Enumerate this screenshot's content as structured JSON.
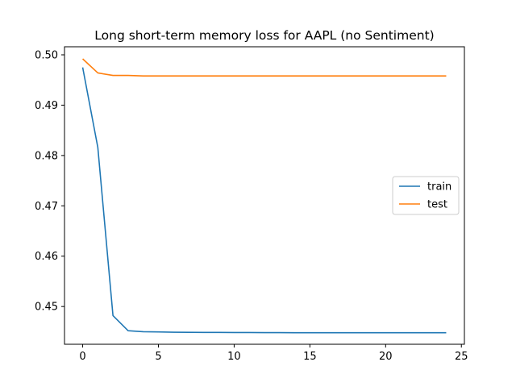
{
  "chart_data": {
    "type": "line",
    "title": "Long short-term memory loss for AAPL (no Sentiment)",
    "xlabel": "",
    "ylabel": "",
    "xlim": [
      -1.2,
      25.2
    ],
    "ylim": [
      0.4425,
      0.5016
    ],
    "x_ticks": [
      0,
      5,
      10,
      15,
      20,
      25
    ],
    "x_tick_labels": [
      "0",
      "5",
      "10",
      "15",
      "20",
      "25"
    ],
    "y_ticks": [
      0.45,
      0.46,
      0.47,
      0.48,
      0.49,
      0.5
    ],
    "y_tick_labels": [
      "0.45",
      "0.46",
      "0.47",
      "0.48",
      "0.49",
      "0.50"
    ],
    "grid": false,
    "legend_position": "center-right",
    "x": [
      0,
      1,
      2,
      3,
      4,
      5,
      6,
      7,
      8,
      9,
      10,
      11,
      12,
      13,
      14,
      15,
      16,
      17,
      18,
      19,
      20,
      21,
      22,
      23,
      24
    ],
    "series": [
      {
        "name": "train",
        "color": "#1f77b4",
        "values": [
          0.4975,
          0.4816,
          0.4482,
          0.4452,
          0.445,
          0.44495,
          0.4449,
          0.44488,
          0.44486,
          0.44485,
          0.44484,
          0.44483,
          0.44482,
          0.44481,
          0.4448,
          0.4448,
          0.4448,
          0.4448,
          0.4448,
          0.4448,
          0.4448,
          0.4448,
          0.4448,
          0.4448,
          0.4448
        ]
      },
      {
        "name": "test",
        "color": "#ff7f0e",
        "values": [
          0.4992,
          0.4964,
          0.4959,
          0.4959,
          0.4958,
          0.4958,
          0.4958,
          0.4958,
          0.4958,
          0.4958,
          0.4958,
          0.4958,
          0.4958,
          0.4958,
          0.4958,
          0.4958,
          0.4958,
          0.4958,
          0.4958,
          0.4958,
          0.4958,
          0.4958,
          0.4958,
          0.4958,
          0.4958
        ]
      }
    ]
  }
}
